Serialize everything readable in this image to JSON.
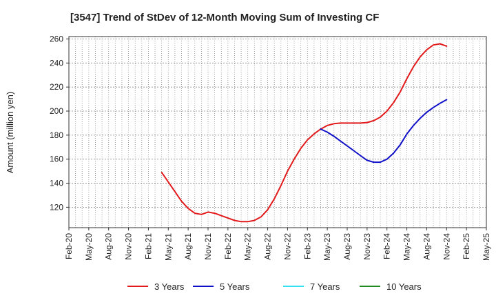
{
  "chart_data": {
    "type": "line",
    "title": "[3547]  Trend of StDev of 12-Month Moving Sum of Investing CF",
    "ylabel": "Amount (million yen)",
    "xlabel": "",
    "ylim": [
      103,
      262
    ],
    "yticks": [
      120,
      140,
      160,
      180,
      200,
      220,
      240,
      260
    ],
    "x_tick_labels": [
      "Feb-20",
      "May-20",
      "Aug-20",
      "Nov-20",
      "Feb-21",
      "May-21",
      "Aug-21",
      "Nov-21",
      "Feb-22",
      "May-22",
      "Aug-22",
      "Nov-22",
      "Feb-23",
      "May-23",
      "Aug-23",
      "Nov-23",
      "Feb-24",
      "May-24",
      "Aug-24",
      "Nov-24",
      "Feb-25",
      "May-25"
    ],
    "grid": true,
    "legend_position": "bottom",
    "colors": {
      "3 Years": "#e31a1c",
      "5 Years": "#1010c8",
      "7 Years": "#33e0f0",
      "10 Years": "#208a20"
    },
    "series": [
      {
        "name": "3 Years",
        "x": [
          "2021-04",
          "2021-05",
          "2021-06",
          "2021-07",
          "2021-08",
          "2021-09",
          "2021-10",
          "2021-11",
          "2021-12",
          "2022-01",
          "2022-02",
          "2022-03",
          "2022-04",
          "2022-05",
          "2022-06",
          "2022-07",
          "2022-08",
          "2022-09",
          "2022-10",
          "2022-11",
          "2022-12",
          "2023-01",
          "2023-02",
          "2023-03",
          "2023-04",
          "2023-05",
          "2023-06",
          "2023-07",
          "2023-08",
          "2023-09",
          "2023-10",
          "2023-11",
          "2023-12",
          "2024-01",
          "2024-02",
          "2024-03",
          "2024-04",
          "2024-05",
          "2024-06",
          "2024-07",
          "2024-08",
          "2024-09",
          "2024-10",
          "2024-11"
        ],
        "values": [
          149,
          141,
          133,
          125,
          119,
          115,
          114,
          116,
          115,
          113,
          111,
          109,
          108,
          108,
          109,
          112,
          118,
          127,
          138,
          150,
          160,
          169,
          176,
          181,
          185,
          188,
          189.5,
          190,
          190,
          190,
          190,
          190.5,
          192,
          195,
          200,
          207,
          216,
          227,
          237,
          245,
          251,
          255,
          256,
          254
        ]
      },
      {
        "name": "5 Years",
        "x": [
          "2023-04",
          "2023-05",
          "2023-06",
          "2023-07",
          "2023-08",
          "2023-09",
          "2023-10",
          "2023-11",
          "2023-12",
          "2024-01",
          "2024-02",
          "2024-03",
          "2024-04",
          "2024-05",
          "2024-06",
          "2024-07",
          "2024-08",
          "2024-09",
          "2024-10",
          "2024-11"
        ],
        "values": [
          185,
          182.5,
          179,
          175,
          171,
          167,
          163,
          159,
          157.5,
          157.5,
          160,
          165,
          172,
          181,
          188,
          194,
          199,
          203,
          206.5,
          209.5
        ]
      },
      {
        "name": "7 Years",
        "x": [],
        "values": []
      },
      {
        "name": "10 Years",
        "x": [],
        "values": []
      }
    ]
  }
}
